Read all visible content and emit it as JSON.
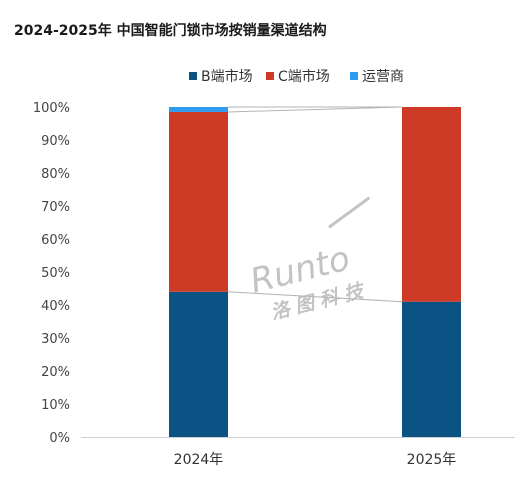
{
  "chart_data": {
    "type": "bar",
    "stacked": true,
    "percent": true,
    "title": "2024-2025年 中国智能门锁市场按销量渠道结构",
    "categories": [
      "2024年",
      "2025年"
    ],
    "series": [
      {
        "name": "B端市场",
        "values": [
          44,
          41
        ],
        "color": "#0a5384"
      },
      {
        "name": "C端市场",
        "values": [
          54.5,
          59
        ],
        "color": "#cd3b27"
      },
      {
        "name": "运营商",
        "values": [
          1.5,
          0
        ],
        "color": "#2f9bee"
      }
    ],
    "ylim": [
      0,
      100
    ],
    "yticks": [
      "0%",
      "10%",
      "20%",
      "30%",
      "40%",
      "50%",
      "60%",
      "70%",
      "80%",
      "90%",
      "100%"
    ],
    "legend_position": "top",
    "grid": false,
    "connector_lines": true,
    "watermark": {
      "text_en": "Runto",
      "text_cn": "洛图科技"
    }
  }
}
